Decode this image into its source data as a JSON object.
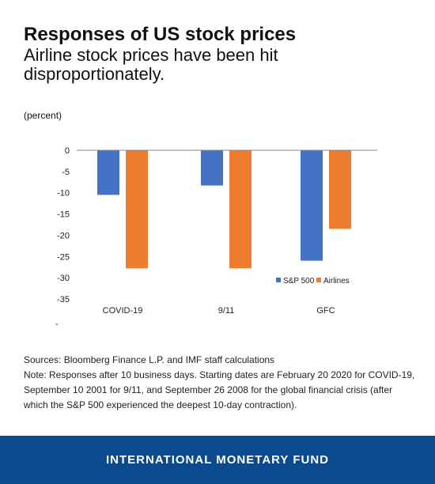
{
  "title": "Responses of US stock prices",
  "subtitle": "Airline stock prices have been hit disproportionately.",
  "unit_label": "(percent)",
  "sources": "Sources: Bloomberg Finance L.P. and IMF staff calculations",
  "note": "Note: Responses after 10 business days. Starting dates are February 20 2020 for COVID-19, September 10 2001 for 9/11, and September 26 2008 for the global financial crisis (after which the S&P 500 experienced the deepest 10-day contraction).",
  "footer": "INTERNATIONAL MONETARY FUND",
  "chart_data": {
    "type": "bar",
    "categories": [
      "COVID-19",
      "9/11",
      "GFC"
    ],
    "series": [
      {
        "name": "S&P 500",
        "color": "#4472c4",
        "values": [
          -10.5,
          -8.3,
          -26.0
        ]
      },
      {
        "name": "Airlines",
        "color": "#ed7d31",
        "values": [
          -27.8,
          -27.8,
          -18.5
        ]
      }
    ],
    "ylim": [
      -35,
      0
    ],
    "yticks": [
      0,
      -5,
      -10,
      -15,
      -20,
      -25,
      -30,
      -35
    ],
    "grid": false,
    "legend_position": "bottom-right"
  }
}
